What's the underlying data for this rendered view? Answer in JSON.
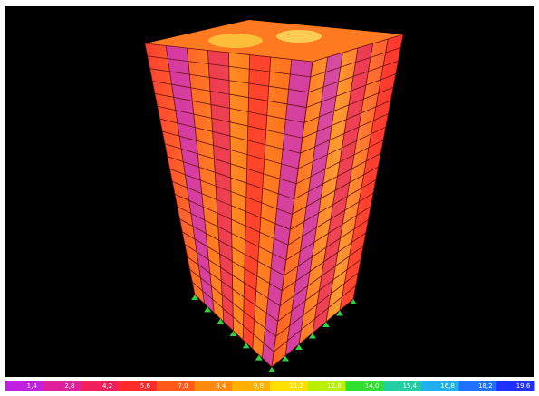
{
  "legend": {
    "labels": [
      "1,4",
      "2,8",
      "4,2",
      "5,6",
      "7,0",
      "8,4",
      "9,8",
      "11,2",
      "12,6",
      "14,0",
      "15,4",
      "16,8",
      "18,2",
      "19,6"
    ],
    "colors": [
      "#c020e0",
      "#e0209a",
      "#f0205a",
      "#ff2a2a",
      "#ff5a1a",
      "#ff8a10",
      "#ffb000",
      "#ffe000",
      "#b8f000",
      "#30e030",
      "#20d0a0",
      "#20b0f0",
      "#2070ff",
      "#2030ff"
    ]
  }
}
